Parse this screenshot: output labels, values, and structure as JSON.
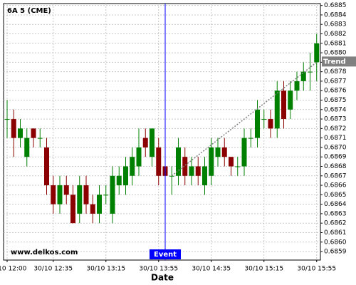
{
  "chart_data": {
    "type": "candlestick",
    "title": "6A 5 (CME)",
    "x_label": "Date",
    "watermark": "www.delkos.com",
    "x": [
      "30/10 12:00",
      "30/10 12:05",
      "30/10 12:10",
      "30/10 12:15",
      "30/10 12:20",
      "30/10 12:25",
      "30/10 12:30",
      "30/10 12:35",
      "30/10 12:40",
      "30/10 12:45",
      "30/10 12:50",
      "30/10 12:55",
      "30/10 13:00",
      "30/10 13:05",
      "30/10 13:10",
      "30/10 13:15",
      "30/10 13:20",
      "30/10 13:25",
      "30/10 13:30",
      "30/10 13:35",
      "30/10 13:40",
      "30/10 13:45",
      "30/10 13:50",
      "30/10 13:55",
      "30/10 14:00",
      "30/10 14:05",
      "30/10 14:10",
      "30/10 14:15",
      "30/10 14:20",
      "30/10 14:25",
      "30/10 14:30",
      "30/10 14:35",
      "30/10 14:40",
      "30/10 14:45",
      "30/10 14:50",
      "30/10 14:55",
      "30/10 15:00",
      "30/10 15:05",
      "30/10 15:10",
      "30/10 15:15",
      "30/10 15:20",
      "30/10 15:25",
      "30/10 15:30",
      "30/10 15:35",
      "30/10 15:40",
      "30/10 15:45",
      "30/10 15:50",
      "30/10 15:55"
    ],
    "open": [
      0.6873,
      0.6873,
      0.6871,
      0.6869,
      0.6872,
      0.6871,
      0.687,
      0.6866,
      0.6864,
      0.6866,
      0.6865,
      0.6863,
      0.6866,
      0.6864,
      0.6863,
      0.6865,
      0.6863,
      0.6866,
      0.6866,
      0.6867,
      0.6868,
      0.6871,
      0.6869,
      0.687,
      0.6868,
      0.6867,
      0.6867,
      0.6869,
      0.6867,
      0.6868,
      0.6866,
      0.6867,
      0.6869,
      0.687,
      0.6869,
      0.6868,
      0.6868,
      0.6871,
      0.6871,
      0.6873,
      0.6873,
      0.6872,
      0.6876,
      0.6874,
      0.6876,
      0.6877,
      0.6878,
      0.6879
    ],
    "high": [
      0.6875,
      0.6874,
      0.6873,
      0.6872,
      0.6872,
      0.6872,
      0.6871,
      0.6867,
      0.6867,
      0.6867,
      0.6866,
      0.6867,
      0.6867,
      0.6865,
      0.6866,
      0.6866,
      0.6868,
      0.6868,
      0.6869,
      0.687,
      0.6872,
      0.6872,
      0.6872,
      0.6871,
      0.6869,
      0.6868,
      0.6871,
      0.687,
      0.6869,
      0.6869,
      0.6869,
      0.6871,
      0.6871,
      0.6871,
      0.6869,
      0.6869,
      0.6872,
      0.6872,
      0.6875,
      0.6874,
      0.6874,
      0.6877,
      0.6877,
      0.6877,
      0.6878,
      0.6879,
      0.688,
      0.6882
    ],
    "low": [
      0.6871,
      0.6869,
      0.687,
      0.6868,
      0.687,
      0.687,
      0.6865,
      0.6863,
      0.6863,
      0.6864,
      0.6862,
      0.6862,
      0.6863,
      0.6862,
      0.6862,
      0.6864,
      0.6862,
      0.6865,
      0.6865,
      0.6866,
      0.6867,
      0.6869,
      0.6868,
      0.6866,
      0.6866,
      0.6865,
      0.6866,
      0.6866,
      0.6866,
      0.6866,
      0.6865,
      0.6866,
      0.6868,
      0.6868,
      0.6867,
      0.6867,
      0.6867,
      0.687,
      0.687,
      0.6872,
      0.6871,
      0.6871,
      0.6872,
      0.6873,
      0.6875,
      0.6876,
      0.6876,
      0.6877
    ],
    "close": [
      0.6873,
      0.6871,
      0.6872,
      0.6871,
      0.6871,
      0.6871,
      0.6866,
      0.6864,
      0.6866,
      0.6865,
      0.6862,
      0.6866,
      0.6864,
      0.6863,
      0.6865,
      0.6865,
      0.6867,
      0.6867,
      0.6868,
      0.6869,
      0.687,
      0.687,
      0.6872,
      0.6867,
      0.6867,
      0.6867,
      0.687,
      0.6867,
      0.6868,
      0.6867,
      0.6868,
      0.687,
      0.687,
      0.6869,
      0.6868,
      0.6868,
      0.6871,
      0.6871,
      0.6874,
      0.6873,
      0.6872,
      0.6876,
      0.6873,
      0.6876,
      0.6877,
      0.6878,
      0.6878,
      0.6881
    ],
    "up_color": "#008000",
    "down_color": "#8b0000",
    "ylim": [
      0.68581,
      0.68852
    ],
    "yticks": [
      0.6859,
      {
        "value": 0.686,
        "label": "0.6860"
      },
      0.6861,
      0.6862,
      0.6863,
      0.6864,
      0.6865,
      0.6866,
      0.6867,
      0.6868,
      0.6869,
      {
        "value": 0.687,
        "label": "0.6870"
      },
      0.6871,
      0.6872,
      0.6873,
      0.6874,
      0.6875,
      0.6876,
      0.6877,
      0.6878,
      0.6879,
      {
        "value": 0.688,
        "label": "0.6880"
      },
      0.6881,
      0.6882,
      0.6883,
      0.6884,
      0.6885
    ],
    "xticks": [
      "30/10 12:00",
      "30/10 12:35",
      "30/10 13:15",
      "30/10 13:55",
      "30/10 14:35",
      "30/10 15:15",
      "30/10 15:55"
    ],
    "grid": true,
    "event": {
      "label": "Event",
      "x": "30/10 14:00",
      "color": "#0000ff"
    },
    "trend": {
      "label": "Trend",
      "x": [
        "30/10 14:05",
        "30/10 15:55"
      ],
      "y": [
        0.6867,
        0.6879
      ],
      "color": "#808080"
    }
  }
}
